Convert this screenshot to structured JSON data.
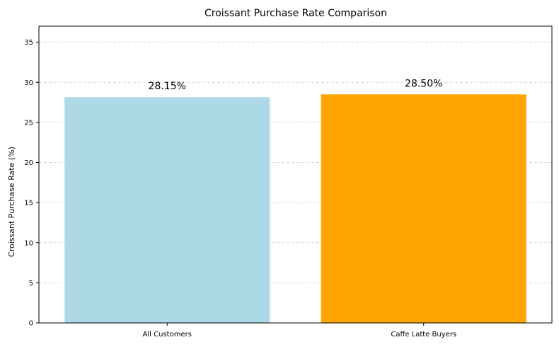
{
  "chart_data": {
    "type": "bar",
    "title": "Croissant Purchase Rate Comparison",
    "xlabel": "",
    "ylabel": "Croissant Purchase Rate (%)",
    "categories": [
      "All Customers",
      "Caffe Latte Buyers"
    ],
    "values": [
      28.15,
      28.5
    ],
    "data_labels": [
      "28.15%",
      "28.50%"
    ],
    "colors": [
      "#add8e6",
      "#ffa500"
    ],
    "ylim": [
      0,
      37
    ],
    "yticks": [
      0,
      5,
      10,
      15,
      20,
      25,
      30,
      35
    ],
    "grid": "y-dashed",
    "legend": "none"
  }
}
